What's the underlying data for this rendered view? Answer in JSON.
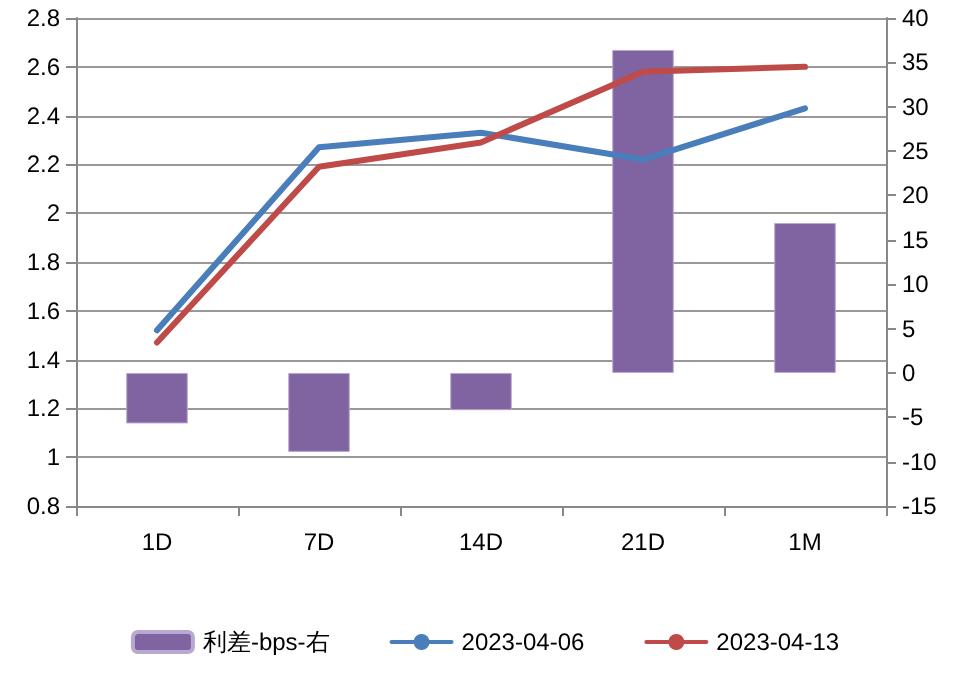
{
  "chart_data": {
    "type": "line",
    "categories": [
      "1D",
      "7D",
      "14D",
      "21D",
      "1M"
    ],
    "series": [
      {
        "name": "利差-bps-右",
        "type": "bar",
        "axis": "y2",
        "color": "#8064a2",
        "values": [
          -5.7,
          -8.9,
          -4.2,
          36.4,
          16.9
        ]
      },
      {
        "name": "2023-04-06",
        "color": "#4a7ebb",
        "values": [
          1.52,
          2.27,
          2.33,
          2.22,
          2.43
        ]
      },
      {
        "name": "2023-04-13",
        "color": "#be4b48",
        "values": [
          1.47,
          2.19,
          2.29,
          2.58,
          2.6
        ]
      }
    ],
    "ylim": [
      0.8,
      2.8
    ],
    "yticks": [
      0.8,
      1,
      1.2,
      1.4,
      1.6,
      1.8,
      2,
      2.2,
      2.4,
      2.6,
      2.8
    ],
    "y2lim": [
      -15,
      40
    ],
    "y2ticks": [
      -15,
      -10,
      -5,
      0,
      5,
      10,
      15,
      20,
      25,
      30,
      35,
      40
    ],
    "grid": "y",
    "legend": "bottom",
    "marker": "none",
    "line_style": "solid"
  }
}
